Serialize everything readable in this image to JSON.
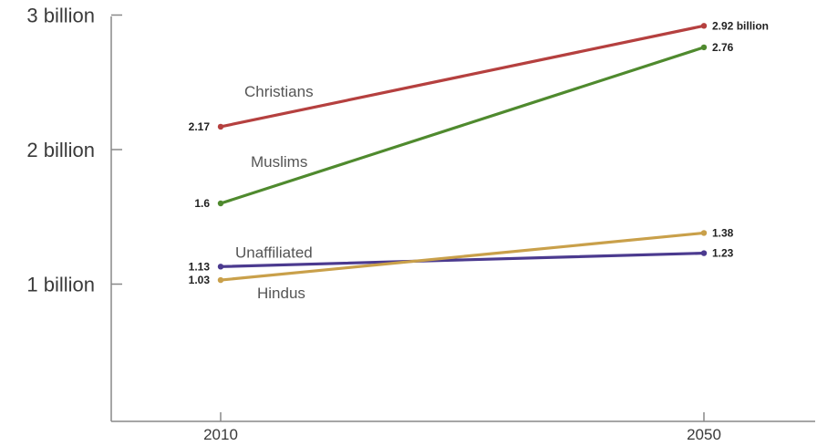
{
  "chart_data": {
    "type": "line",
    "x": [
      "2010",
      "2050"
    ],
    "ylim": [
      0,
      3
    ],
    "y_ticks": [
      {
        "value": 1,
        "label": "1 billion"
      },
      {
        "value": 2,
        "label": "2 billion"
      },
      {
        "value": 3,
        "label": "3 billion"
      }
    ],
    "grid": false,
    "series": [
      {
        "name": "Christians",
        "color": "#b5403f",
        "values": [
          2.17,
          2.92
        ],
        "labels": [
          "2.17",
          "2.92 billion"
        ]
      },
      {
        "name": "Muslims",
        "color": "#4f8a2e",
        "values": [
          1.6,
          2.76
        ],
        "labels": [
          "1.6",
          "2.76"
        ]
      },
      {
        "name": "Unaffiliated",
        "color": "#4b3a8f",
        "values": [
          1.13,
          1.23
        ],
        "labels": [
          "1.13",
          "1.23"
        ]
      },
      {
        "name": "Hindus",
        "color": "#c9a04a",
        "values": [
          1.03,
          1.38
        ],
        "labels": [
          "1.03",
          "1.38"
        ]
      }
    ]
  }
}
